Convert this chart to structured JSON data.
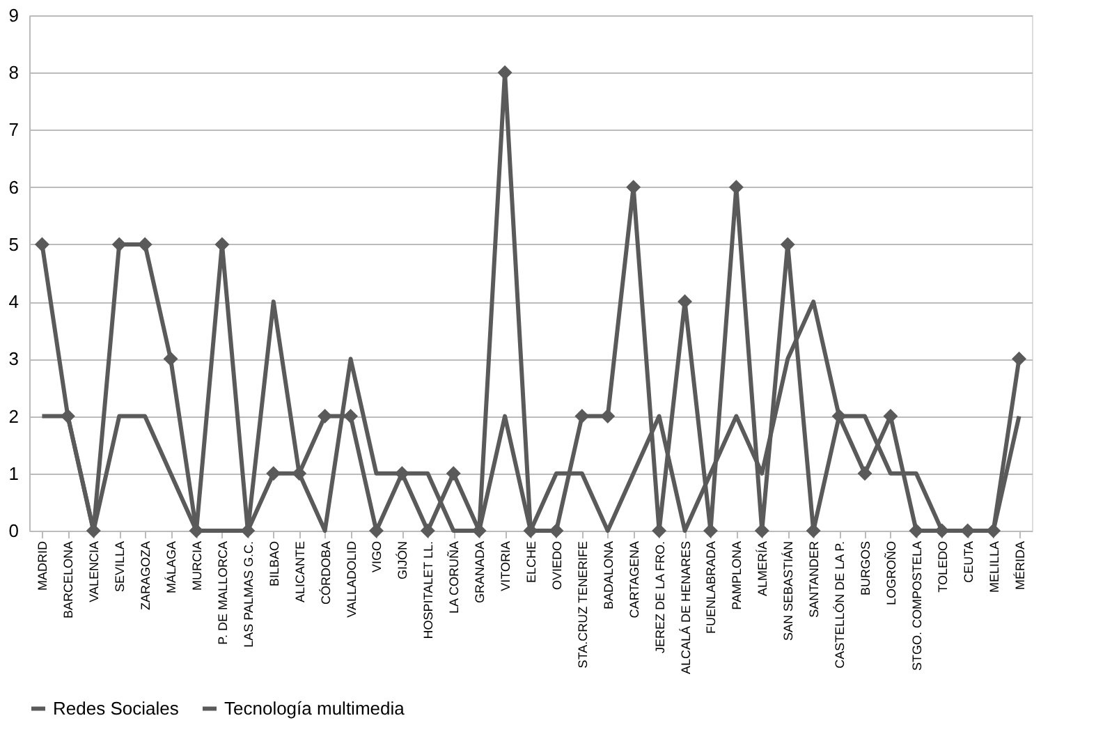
{
  "chart_data": {
    "type": "line",
    "categories": [
      "MADRID",
      "BARCELONA",
      "VALENCIA",
      "SEVILLA",
      "ZARAGOZA",
      "MÁLAGA",
      "MURCIA",
      "P. DE MALLORCA",
      "LAS PALMAS G.C.",
      "BILBAO",
      "ALICANTE",
      "CÓRDOBA",
      "VALLADOLID",
      "VIGO",
      "GIJÓN",
      "HOSPITALET LL.",
      "LA CORUÑA",
      "GRANADA",
      "VITORIA",
      "ELCHE",
      "OVIEDO",
      "STA.CRUZ TENERIFE",
      "BADALONA",
      "CARTAGENA",
      "JEREZ DE LA FRO.",
      "ALCALÁ DE HENARES",
      "FUENLABRADA",
      "PAMPLONA",
      "ALMERÍA",
      "SAN SEBASTIÁN",
      "SANTANDER",
      "CASTELLÓN DE LA P.",
      "BURGOS",
      "LOGROÑO",
      "STGO. COMPOSTELA",
      "TOLEDO",
      "CEUTA",
      "MELILLA",
      "MÉRIDA"
    ],
    "series": [
      {
        "name": "Redes Sociales",
        "color": "#5a5a5a",
        "marker": "diamond",
        "values": [
          5,
          2,
          0,
          5,
          5,
          3,
          0,
          5,
          0,
          1,
          1,
          2,
          2,
          0,
          1,
          0,
          1,
          0,
          8,
          0,
          0,
          2,
          2,
          6,
          0,
          4,
          0,
          6,
          0,
          5,
          0,
          2,
          1,
          2,
          0,
          0,
          0,
          0,
          3
        ]
      },
      {
        "name": "Tecnología multimedia",
        "color": "#5a5a5a",
        "marker": "none",
        "values": [
          2,
          2,
          0,
          2,
          2,
          1,
          0,
          0,
          0,
          4,
          1,
          0,
          3,
          1,
          1,
          1,
          0,
          0,
          2,
          0,
          1,
          1,
          0,
          1,
          2,
          0,
          1,
          2,
          1,
          3,
          4,
          2,
          2,
          1,
          1,
          0,
          0,
          0,
          2
        ]
      }
    ],
    "ylim": [
      0,
      9
    ],
    "yticks": [
      0,
      1,
      2,
      3,
      4,
      5,
      6,
      7,
      8,
      9
    ],
    "grid": "y",
    "legend": "bottom",
    "line_style": "solid"
  }
}
